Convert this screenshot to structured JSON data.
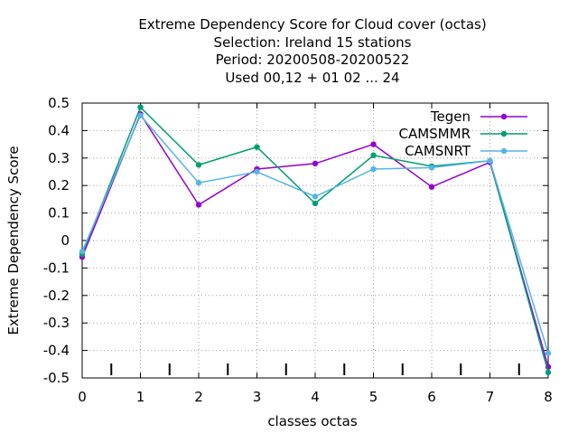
{
  "chart_data": {
    "type": "line",
    "title_lines": [
      "Extreme Dependency Score  for Cloud cover (octas)",
      "Selection: Ireland      15 stations",
      "Period: 20200508-20200522",
      "Used  00,12  + 01 02 ... 24"
    ],
    "xlabel": "classes octas",
    "ylabel": "Extreme Dependency Score",
    "x": [
      0,
      1,
      2,
      3,
      4,
      5,
      6,
      7,
      8
    ],
    "xlim": [
      0,
      8
    ],
    "ylim": [
      -0.5,
      0.5
    ],
    "x_ticks": [
      "0",
      "1",
      "2",
      "3",
      "4",
      "5",
      "6",
      "7",
      "8"
    ],
    "y_ticks": [
      {
        "value": 0.5,
        "label": "0.5"
      },
      {
        "value": 0.4,
        "label": "0.4"
      },
      {
        "value": 0.3,
        "label": "0.3"
      },
      {
        "value": 0.2,
        "label": "0.2"
      },
      {
        "value": 0.1,
        "label": "0.1"
      },
      {
        "value": 0.0,
        "label": "0"
      },
      {
        "value": -0.1,
        "label": "-0.1"
      },
      {
        "value": -0.2,
        "label": "-0.2"
      },
      {
        "value": -0.3,
        "label": "-0.3"
      },
      {
        "value": -0.4,
        "label": "-0.4"
      },
      {
        "value": -0.5,
        "label": "-0.5"
      }
    ],
    "grid": true,
    "legend_position": "top-right",
    "series": [
      {
        "name": "Tegen",
        "color": "#9400d3",
        "values": [
          -0.06,
          0.46,
          0.13,
          0.26,
          0.28,
          0.35,
          0.195,
          0.285,
          -0.46
        ]
      },
      {
        "name": "CAMSMMR",
        "color": "#009e73",
        "values": [
          -0.05,
          0.485,
          0.275,
          0.34,
          0.135,
          0.31,
          0.27,
          0.29,
          -0.48
        ]
      },
      {
        "name": "CAMSNRT",
        "color": "#56b4e9",
        "values": [
          -0.04,
          0.455,
          0.21,
          0.25,
          0.16,
          0.26,
          0.265,
          0.29,
          -0.41
        ]
      }
    ]
  }
}
